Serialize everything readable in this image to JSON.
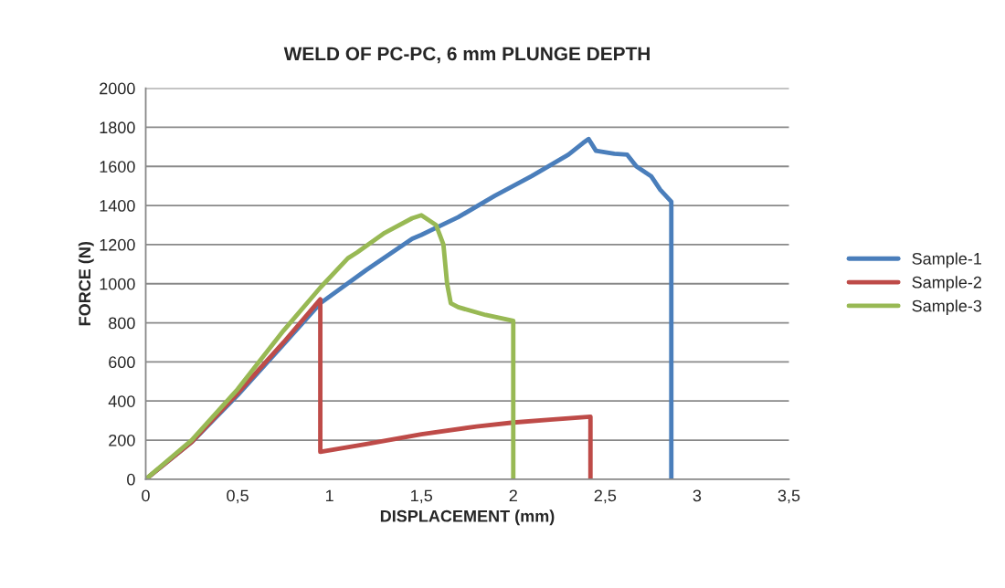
{
  "chart_data": {
    "type": "line",
    "title": "WELD OF PC-PC, 6 mm PLUNGE DEPTH",
    "xlabel": "DISPLACEMENT (mm)",
    "ylabel": "FORCE (N)",
    "xlim": [
      0,
      3.5
    ],
    "xticks": [
      {
        "value": 0,
        "label": "0"
      },
      {
        "value": 0.5,
        "label": "0,5"
      },
      {
        "value": 1,
        "label": "1"
      },
      {
        "value": 1.5,
        "label": "1,5"
      },
      {
        "value": 2,
        "label": "2"
      },
      {
        "value": 2.5,
        "label": "2,5"
      },
      {
        "value": 3,
        "label": "3"
      },
      {
        "value": 3.5,
        "label": "3,5"
      }
    ],
    "ylim": [
      0,
      2000
    ],
    "yticks": [
      0,
      200,
      400,
      600,
      800,
      1000,
      1200,
      1400,
      1600,
      1800,
      2000
    ],
    "grid": "y",
    "legend": "right",
    "marker": "none",
    "line_style": "solid",
    "series": [
      {
        "name": "Sample-1",
        "color": "#4a7ebb",
        "x": [
          0,
          0.25,
          0.5,
          0.75,
          0.95,
          1.2,
          1.45,
          1.5,
          1.7,
          1.9,
          2.1,
          2.3,
          2.38,
          2.41,
          2.45,
          2.55,
          2.62,
          2.67,
          2.75,
          2.8,
          2.86,
          2.86
        ],
        "values": [
          0,
          190,
          430,
          690,
          900,
          1070,
          1230,
          1250,
          1340,
          1450,
          1550,
          1660,
          1720,
          1740,
          1680,
          1665,
          1660,
          1600,
          1550,
          1480,
          1420,
          0
        ]
      },
      {
        "name": "Sample-2",
        "color": "#be4b48",
        "x": [
          0,
          0.25,
          0.5,
          0.75,
          0.95,
          0.95,
          1.2,
          1.5,
          1.8,
          2.0,
          2.2,
          2.42,
          2.42
        ],
        "values": [
          0,
          190,
          440,
          700,
          920,
          140,
          180,
          230,
          270,
          290,
          305,
          320,
          0
        ]
      },
      {
        "name": "Sample-3",
        "color": "#98b954",
        "x": [
          0,
          0.25,
          0.5,
          0.75,
          0.95,
          1.1,
          1.15,
          1.3,
          1.45,
          1.5,
          1.58,
          1.62,
          1.64,
          1.66,
          1.7,
          1.85,
          2.0,
          2.0
        ],
        "values": [
          0,
          200,
          460,
          760,
          980,
          1130,
          1160,
          1260,
          1335,
          1350,
          1300,
          1200,
          1000,
          900,
          880,
          840,
          810,
          0
        ]
      }
    ]
  }
}
